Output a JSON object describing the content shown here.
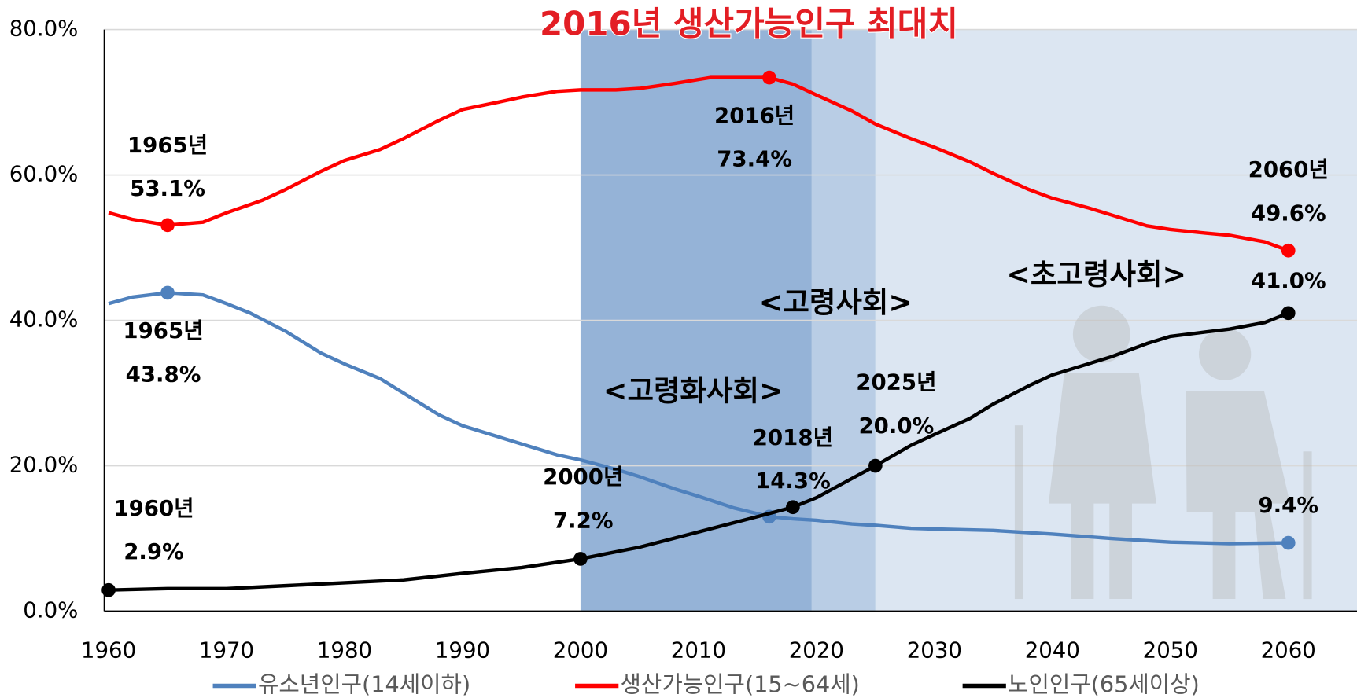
{
  "chart_data": {
    "type": "line",
    "title": "2016년 생산가능인구 최대치",
    "xlim": [
      1960,
      2066
    ],
    "xticks": [
      1960,
      1970,
      1980,
      1990,
      2000,
      2010,
      2020,
      2030,
      2040,
      2050,
      2060
    ],
    "ylim": [
      0,
      80
    ],
    "yticks": [
      {
        "value": 0,
        "label": "0.0%"
      },
      {
        "value": 20,
        "label": "20.0%"
      },
      {
        "value": 40,
        "label": "40.0%"
      },
      {
        "value": 60,
        "label": "60.0%"
      },
      {
        "value": 80,
        "label": "80.0%"
      }
    ],
    "grid": true,
    "legend": "bottom",
    "regions": [
      {
        "label": "<고령화사회>",
        "from": 2000,
        "to": 2019.6,
        "color": "#95b3d7"
      },
      {
        "label": "<고령사회>",
        "from": 2019.6,
        "to": 2025,
        "color": "#b9cde5"
      },
      {
        "label": "<초고령사회>",
        "from": 2025,
        "to": 2066,
        "color": "#dce6f2"
      }
    ],
    "series": [
      {
        "name": "유소년인구(14세이하)",
        "color": "#4f81bd",
        "x": [
          1960,
          1962,
          1965,
          1968,
          1970,
          1972,
          1975,
          1978,
          1980,
          1983,
          1985,
          1988,
          1990,
          1993,
          1995,
          1998,
          2000,
          2003,
          2005,
          2008,
          2010,
          2013,
          2016,
          2018,
          2020,
          2023,
          2025,
          2028,
          2030,
          2035,
          2040,
          2045,
          2050,
          2055,
          2060
        ],
        "values": [
          42.3,
          43.2,
          43.8,
          43.5,
          42.3,
          41.0,
          38.5,
          35.5,
          34.0,
          32.0,
          30.0,
          27.0,
          25.5,
          24.0,
          23.0,
          21.5,
          20.8,
          19.5,
          18.5,
          16.8,
          15.8,
          14.2,
          13.0,
          12.7,
          12.5,
          12.0,
          11.8,
          11.4,
          11.3,
          11.1,
          10.6,
          10.0,
          9.5,
          9.3,
          9.4
        ],
        "points": [
          {
            "x": 1965,
            "y": 43.8,
            "year_label": "1965년",
            "value_label": "43.8%"
          },
          {
            "x": 2016,
            "y": 13.0
          },
          {
            "x": 2060,
            "y": 9.4,
            "value_label": "9.4%"
          }
        ]
      },
      {
        "name": "생산가능인구(15~64세)",
        "color": "#ff0000",
        "x": [
          1960,
          1962,
          1965,
          1968,
          1970,
          1973,
          1975,
          1978,
          1980,
          1983,
          1985,
          1988,
          1990,
          1993,
          1995,
          1998,
          2000,
          2003,
          2005,
          2008,
          2011,
          2014,
          2016,
          2018,
          2020,
          2023,
          2025,
          2028,
          2030,
          2033,
          2035,
          2038,
          2040,
          2043,
          2045,
          2048,
          2050,
          2053,
          2055,
          2058,
          2060
        ],
        "values": [
          54.8,
          53.9,
          53.1,
          53.5,
          54.8,
          56.5,
          58.0,
          60.5,
          62.0,
          63.5,
          65.0,
          67.5,
          69.0,
          70.0,
          70.7,
          71.5,
          71.7,
          71.7,
          71.9,
          72.6,
          73.4,
          73.4,
          73.4,
          72.5,
          71.0,
          68.8,
          67.0,
          65.0,
          63.8,
          61.8,
          60.2,
          58.0,
          56.8,
          55.5,
          54.5,
          53.0,
          52.5,
          52.0,
          51.7,
          50.8,
          49.6
        ],
        "points": [
          {
            "x": 1965,
            "y": 53.1,
            "year_label": "1965년",
            "value_label": "53.1%"
          },
          {
            "x": 2016,
            "y": 73.4,
            "year_label": "2016년",
            "value_label": "73.4%"
          },
          {
            "x": 2060,
            "y": 49.6,
            "year_label": "2060년",
            "value_label": "49.6%"
          }
        ]
      },
      {
        "name": "노인인구(65세이상)",
        "color": "#000000",
        "x": [
          1960,
          1965,
          1970,
          1975,
          1980,
          1985,
          1990,
          1995,
          2000,
          2005,
          2010,
          2015,
          2018,
          2020,
          2025,
          2028,
          2030,
          2033,
          2035,
          2038,
          2040,
          2043,
          2045,
          2048,
          2050,
          2053,
          2055,
          2058,
          2060
        ],
        "values": [
          2.9,
          3.1,
          3.1,
          3.5,
          3.9,
          4.3,
          5.2,
          6.0,
          7.2,
          8.8,
          10.9,
          13.0,
          14.3,
          15.6,
          20.0,
          22.8,
          24.3,
          26.5,
          28.5,
          31.0,
          32.5,
          34.0,
          35.0,
          36.8,
          37.8,
          38.4,
          38.8,
          39.7,
          41.0
        ],
        "points": [
          {
            "x": 1960,
            "y": 2.9,
            "year_label": "1960년",
            "value_label": "2.9%"
          },
          {
            "x": 2000,
            "y": 7.2,
            "year_label": "2000년",
            "value_label": "7.2%"
          },
          {
            "x": 2018,
            "y": 14.3,
            "year_label": "2018년",
            "value_label": "14.3%"
          },
          {
            "x": 2025,
            "y": 20.0,
            "year_label": "2025년",
            "value_label": "20.0%"
          },
          {
            "x": 2060,
            "y": 41.0,
            "value_label": "41.0%"
          }
        ]
      }
    ]
  }
}
